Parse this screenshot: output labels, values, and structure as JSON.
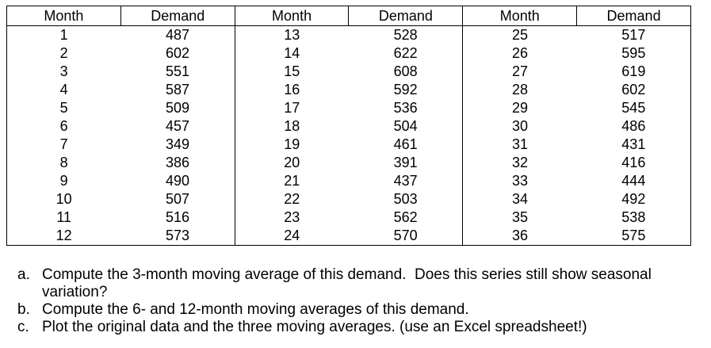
{
  "table": {
    "groups": [
      {
        "month_header": "Month",
        "demand_header": "Demand",
        "rows": [
          [
            1,
            487
          ],
          [
            2,
            602
          ],
          [
            3,
            551
          ],
          [
            4,
            587
          ],
          [
            5,
            509
          ],
          [
            6,
            457
          ],
          [
            7,
            349
          ],
          [
            8,
            386
          ],
          [
            9,
            490
          ],
          [
            10,
            507
          ],
          [
            11,
            516
          ],
          [
            12,
            573
          ]
        ]
      },
      {
        "month_header": "Month",
        "demand_header": "Demand",
        "rows": [
          [
            13,
            528
          ],
          [
            14,
            622
          ],
          [
            15,
            608
          ],
          [
            16,
            592
          ],
          [
            17,
            536
          ],
          [
            18,
            504
          ],
          [
            19,
            461
          ],
          [
            20,
            391
          ],
          [
            21,
            437
          ],
          [
            22,
            503
          ],
          [
            23,
            562
          ],
          [
            24,
            570
          ]
        ]
      },
      {
        "month_header": "Month",
        "demand_header": "Demand",
        "rows": [
          [
            25,
            517
          ],
          [
            26,
            595
          ],
          [
            27,
            619
          ],
          [
            28,
            602
          ],
          [
            29,
            545
          ],
          [
            30,
            486
          ],
          [
            31,
            431
          ],
          [
            32,
            416
          ],
          [
            33,
            444
          ],
          [
            34,
            492
          ],
          [
            35,
            538
          ],
          [
            36,
            575
          ]
        ]
      }
    ]
  },
  "questions": {
    "items": [
      {
        "label": "a.",
        "text": "Compute the 3-month moving average of this demand.  Does this series still show seasonal variation?"
      },
      {
        "label": "b.",
        "text": "Compute the 6- and 12-month moving averages of this demand."
      },
      {
        "label": "c.",
        "text": "Plot the original data and the three moving averages. (use an Excel spreadsheet!)"
      }
    ]
  },
  "colors": {
    "background": "#ffffff",
    "text": "#000000",
    "border": "#000000"
  }
}
